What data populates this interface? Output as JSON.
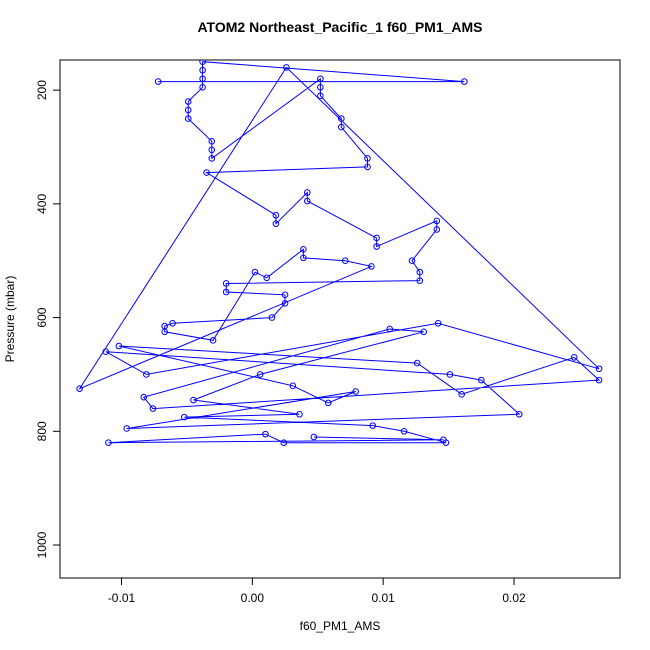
{
  "chart_data": {
    "type": "line",
    "title": "ATOM2 Northeast_Pacific_1 f60_PM1_AMS",
    "x_label": "f60_PM1_AMS",
    "y_label": "Pressure (mbar)",
    "color": "#0000ff",
    "markers": true,
    "xlim": [
      -0.0147,
      0.0281
    ],
    "ylim": [
      1058,
      147
    ],
    "xticks": [
      -0.01,
      {
        "value": 0,
        "label": "0.00"
      },
      0.01,
      0.02
    ],
    "yticks": [
      200,
      400,
      600,
      800,
      1000
    ],
    "x": [
      -0.0072,
      0.0162,
      -0.0038,
      -0.0038,
      -0.0038,
      -0.0038,
      -0.0049,
      -0.0049,
      -0.0049,
      -0.0031,
      -0.0031,
      -0.0031,
      0.0052,
      0.0052,
      0.0052,
      0.0068,
      0.0068,
      0.0088,
      0.0088,
      -0.0035,
      0.0018,
      0.0018,
      0.0042,
      0.0042,
      0.0095,
      0.0095,
      0.0141,
      0.0141,
      0.0122,
      0.0128,
      0.0128,
      -0.002,
      -0.002,
      0.0025,
      0.0025,
      0.0015,
      -0.0061,
      -0.0067,
      -0.0067,
      -0.003,
      0.0002,
      0.0011,
      0.0039,
      0.0039,
      0.0071,
      0.0091,
      -0.0132,
      0.0026,
      0.0265,
      0.0142,
      -0.0081,
      -0.0112,
      0.0151,
      0.0175,
      0.0204,
      -0.0096,
      0.0079,
      0.0058,
      0.0031,
      -0.0102,
      0.0126,
      0.016,
      0.0246,
      0.0265,
      -0.0076,
      -0.0083,
      0.0105,
      0.0131,
      0.0006,
      -0.0045,
      0.0036,
      -0.0052,
      0.0092,
      0.0116,
      0.0148,
      0.0024,
      0.001,
      -0.011,
      0.0146,
      0.0047
    ],
    "values": [
      185,
      185,
      150,
      165,
      180,
      195,
      220,
      235,
      250,
      290,
      305,
      320,
      180,
      195,
      210,
      250,
      265,
      320,
      335,
      345,
      420,
      435,
      380,
      395,
      460,
      475,
      430,
      445,
      500,
      520,
      535,
      540,
      555,
      560,
      575,
      600,
      610,
      615,
      625,
      640,
      520,
      530,
      480,
      495,
      500,
      510,
      725,
      160,
      690,
      610,
      700,
      660,
      700,
      710,
      770,
      795,
      730,
      750,
      720,
      650,
      680,
      735,
      670,
      710,
      760,
      740,
      620,
      625,
      700,
      745,
      770,
      775,
      790,
      800,
      820,
      820,
      805,
      820,
      815,
      810
    ]
  }
}
